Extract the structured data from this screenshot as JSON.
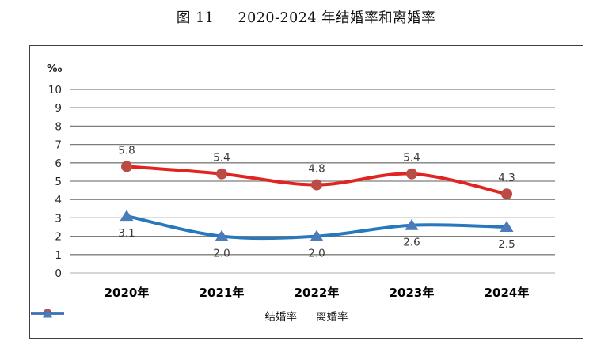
{
  "figure": {
    "title": "图 11     2020-2024 年结婚率和离婚率"
  },
  "chart_data": {
    "type": "line",
    "unit_label": "‰",
    "categories": [
      "2020年",
      "2021年",
      "2022年",
      "2023年",
      "2024年"
    ],
    "series": [
      {
        "slug": "marriage-rate",
        "name": "结婚率",
        "values": [
          5.8,
          5.4,
          4.8,
          5.4,
          4.3
        ],
        "labels": [
          "5.8",
          "5.4",
          "4.8",
          "5.4",
          "4.3"
        ],
        "label_position": "above",
        "line_color": "#e02420",
        "marker_color": "#bc4a45",
        "marker": "circle"
      },
      {
        "slug": "divorce-rate",
        "name": "离婚率",
        "values": [
          3.1,
          2.0,
          2.0,
          2.6,
          2.5
        ],
        "labels": [
          "3.1",
          "2.0",
          "2.0",
          "2.6",
          "2.5"
        ],
        "label_position": "below",
        "line_color": "#2878be",
        "marker_color": "#4b7cb8",
        "marker": "triangle"
      }
    ],
    "ylim": [
      0,
      10
    ],
    "yticks": [
      "0",
      "1",
      "2",
      "3",
      "4",
      "5",
      "6",
      "7",
      "8",
      "9",
      "10"
    ],
    "grid": true,
    "grid_color": "#7d7d7d",
    "grid_zero_color": "#bdbdbd",
    "tick_label_color": "#262626",
    "data_label_color": "#3a3a3a",
    "x_label_color": "#000000",
    "legend_position": "bottom",
    "smooth": true
  }
}
